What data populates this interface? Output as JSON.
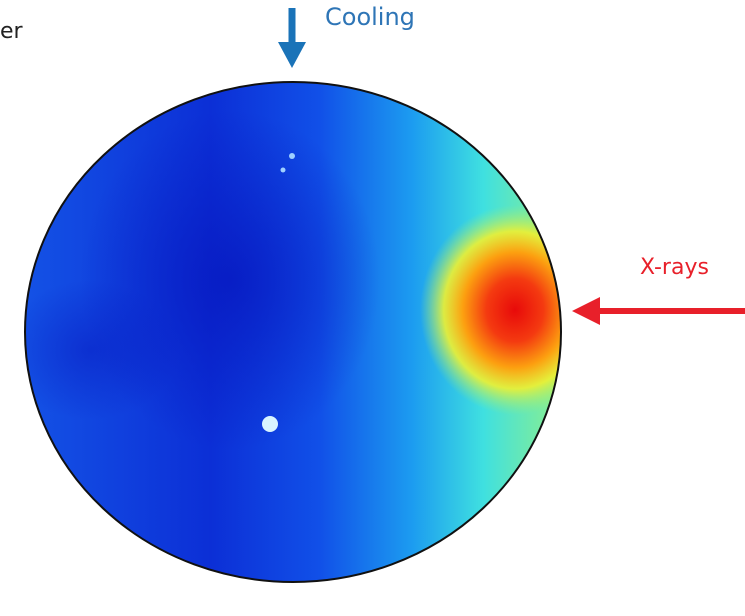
{
  "labels": {
    "corner": "er",
    "cooling": "Cooling",
    "xrays": "X-rays"
  }
}
